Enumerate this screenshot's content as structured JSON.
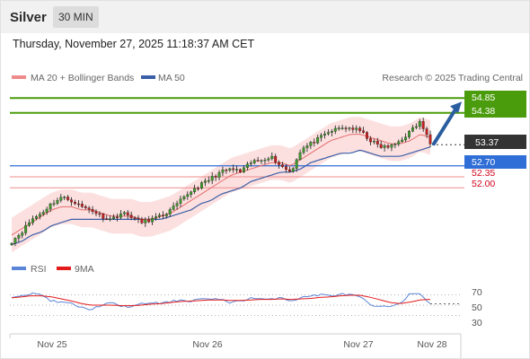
{
  "header": {
    "instrument": "Silver",
    "timeframe": "30 MIN",
    "timestamp": "Thursday, November 27, 2025 11:18:37 AM CET"
  },
  "legend": {
    "ma20": "MA 20 + Bollinger Bands",
    "ma50": "MA 50",
    "source": "Research © 2025 Trading Central"
  },
  "colors": {
    "green_level": "#4a9c0c",
    "blue_level": "#2f6ed6",
    "red_level": "#f08a8a",
    "price_tag": "#333333",
    "arrow": "#2a5d9f",
    "ma20": "#e56b6b",
    "ma50": "#3a5fa8",
    "band": "#fbd6d6",
    "rsi": "#5b85d6",
    "rsi_ma": "#e31b1b"
  },
  "levels": {
    "r2": {
      "label": "54.85",
      "value": 54.85
    },
    "r1": {
      "label": "54.38",
      "value": 54.38
    },
    "last": {
      "label": "53.37",
      "value": 53.37
    },
    "pivot": {
      "label": "52.70",
      "value": 52.7
    },
    "s1": {
      "label": "52.35",
      "value": 52.35
    },
    "s2": {
      "label": "52.00",
      "value": 52.0
    }
  },
  "rsi_panel": {
    "legend_rsi": "RSI",
    "legend_ma": "9MA",
    "ticks": [
      "70",
      "50",
      "30"
    ]
  },
  "x_axis": {
    "ticks": [
      "Nov 25",
      "Nov 26",
      "Nov 27",
      "Nov 28"
    ]
  },
  "chart_data": {
    "type": "candlestick",
    "instrument": "Silver",
    "timeframe": "30 MIN",
    "y_range": [
      49.9,
      55.2
    ],
    "levels": [
      54.85,
      54.38,
      53.37,
      52.7,
      52.35,
      52.0
    ],
    "price_path": [
      50.3,
      50.6,
      51.0,
      51.2,
      51.5,
      51.7,
      51.6,
      51.4,
      51.3,
      51.1,
      51.0,
      51.2,
      51.1,
      50.9,
      51.0,
      51.1,
      51.3,
      51.6,
      51.9,
      52.1,
      52.3,
      52.5,
      52.6,
      52.5,
      52.8,
      52.9,
      53.0,
      52.7,
      52.5,
      53.2,
      53.4,
      53.6,
      53.8,
      53.9,
      53.9,
      53.8,
      53.5,
      53.3,
      53.3,
      53.5,
      53.8,
      54.1,
      53.4
    ],
    "ma20": [
      50.5,
      50.7,
      50.9,
      51.1,
      51.3,
      51.4,
      51.4,
      51.3,
      51.3,
      51.2,
      51.1,
      51.1,
      51.1,
      51.0,
      51.0,
      51.1,
      51.2,
      51.4,
      51.6,
      51.8,
      52.0,
      52.2,
      52.4,
      52.5,
      52.6,
      52.7,
      52.8,
      52.8,
      52.7,
      52.9,
      53.1,
      53.3,
      53.5,
      53.6,
      53.7,
      53.7,
      53.6,
      53.5,
      53.4,
      53.4,
      53.5,
      53.7,
      53.6
    ],
    "ma50": [
      50.2,
      50.3,
      50.5,
      50.6,
      50.8,
      50.9,
      51.0,
      51.0,
      51.0,
      51.0,
      51.0,
      51.0,
      51.0,
      51.0,
      51.0,
      51.0,
      51.1,
      51.2,
      51.3,
      51.5,
      51.6,
      51.8,
      51.9,
      52.0,
      52.2,
      52.3,
      52.4,
      52.5,
      52.5,
      52.6,
      52.8,
      52.9,
      53.0,
      53.1,
      53.1,
      53.2,
      53.1,
      53.0,
      53.0,
      53.0,
      53.1,
      53.2,
      53.3
    ],
    "rsi": {
      "ticks": [
        70,
        50,
        30
      ],
      "values": [
        66,
        70,
        72,
        70,
        58,
        55,
        53,
        45,
        42,
        50,
        54,
        48,
        47,
        52,
        55,
        53,
        57,
        60,
        58,
        63,
        60,
        62,
        55,
        58,
        64,
        62,
        60,
        66,
        58,
        64,
        68,
        70,
        68,
        71,
        70,
        65,
        50,
        46,
        48,
        55,
        72,
        70,
        54
      ],
      "ma9": [
        64,
        66,
        68,
        68,
        66,
        62,
        58,
        53,
        50,
        50,
        50,
        49,
        49,
        50,
        52,
        53,
        55,
        57,
        58,
        59,
        60,
        60,
        59,
        59,
        60,
        61,
        61,
        62,
        61,
        62,
        63,
        65,
        66,
        68,
        69,
        69,
        65,
        60,
        55,
        53,
        56,
        60,
        61
      ]
    },
    "x_ticks": [
      "Nov 25",
      "Nov 26",
      "Nov 27",
      "Nov 28"
    ]
  }
}
